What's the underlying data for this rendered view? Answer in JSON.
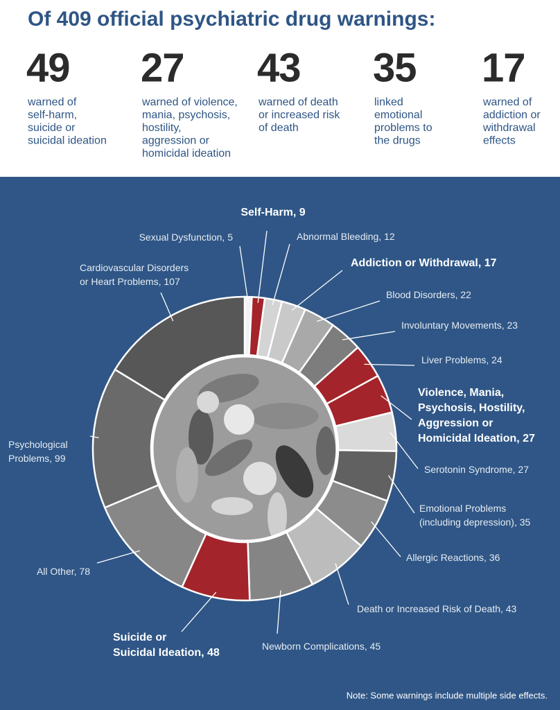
{
  "title": "Of 409 official psychiatric drug warnings:",
  "stats": [
    {
      "value": "49",
      "text": [
        "warned of",
        "self-harm,",
        "suicide or",
        "suicidal ideation"
      ]
    },
    {
      "value": "27",
      "text": [
        "warned of violence,",
        "mania, psychosis,",
        "hostility,",
        "aggression or",
        "homicidal ideation"
      ]
    },
    {
      "value": "43",
      "text": [
        "warned of death",
        "or increased risk",
        "of death"
      ]
    },
    {
      "value": "35",
      "text": [
        "linked",
        "emotional",
        "problems to",
        "the drugs"
      ]
    },
    {
      "value": "17",
      "text": [
        "warned of",
        "addiction or",
        "withdrawal",
        "effects"
      ]
    }
  ],
  "chart_data": {
    "type": "donut",
    "labels": [
      [
        "Sexual Dysfunction, 5"
      ],
      [
        "Self-Harm, 9"
      ],
      [
        "Abnormal Bleeding, 12"
      ],
      [
        "Addiction or Withdrawal, 17"
      ],
      [
        "Blood Disorders, 22"
      ],
      [
        "Involuntary Movements, 23"
      ],
      [
        "Liver Problems, 24"
      ],
      [
        "Violence, Mania,",
        "Psychosis, Hostility,",
        "Aggression or",
        "Homicidal Ideation, 27"
      ],
      [
        "Serotonin Syndrome, 27"
      ],
      [
        "Emotional Problems",
        "(including depression), 35"
      ],
      [
        "Allergic Reactions, 36"
      ],
      [
        "Death or Increased Risk of Death, 43"
      ],
      [
        "Newborn Complications, 45"
      ],
      [
        "Suicide or",
        "Suicidal Ideation, 48"
      ],
      [
        "All Other, 78"
      ],
      [
        "Psychological",
        "Problems, 99"
      ],
      [
        "Cardiovascular Disorders",
        "or Heart Problems, 107"
      ]
    ],
    "values": [
      5,
      9,
      12,
      17,
      22,
      23,
      24,
      27,
      27,
      35,
      36,
      43,
      45,
      48,
      78,
      99,
      107
    ],
    "colors": [
      "#f2f2f2",
      "#a3242a",
      "#d4d4d4",
      "#c9c9c9",
      "#a9a9a9",
      "#7d7d7d",
      "#a3242a",
      "#a3242a",
      "#dadada",
      "#616161",
      "#8c8c8c",
      "#bcbcbc",
      "#858585",
      "#a3242a",
      "#878787",
      "#6a6a6a",
      "#575757"
    ],
    "bold": [
      false,
      true,
      false,
      true,
      false,
      false,
      false,
      true,
      false,
      false,
      false,
      false,
      false,
      true,
      false,
      false,
      false
    ],
    "note": "Note: Some warnings include multiple side effects."
  }
}
